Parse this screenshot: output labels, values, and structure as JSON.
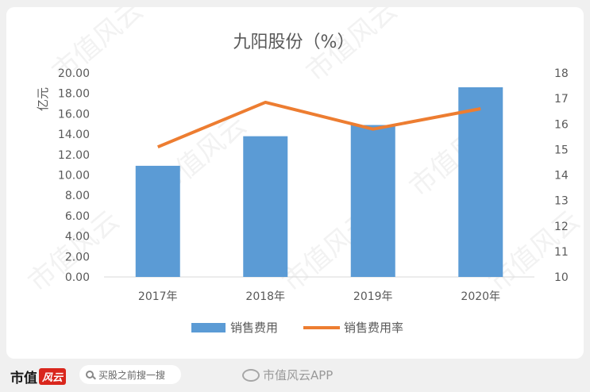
{
  "chart_data": {
    "type": "bar",
    "title": "九阳股份（%）",
    "categories": [
      "2017年",
      "2018年",
      "2019年",
      "2020年"
    ],
    "series": [
      {
        "name": "销售费用",
        "type": "bar",
        "axis": "left",
        "color": "#5b9bd5",
        "values": [
          10.9,
          13.8,
          14.9,
          18.6
        ]
      },
      {
        "name": "销售费用率",
        "type": "line",
        "axis": "right",
        "color": "#ed7d31",
        "values": [
          15.1,
          16.85,
          15.8,
          16.6
        ]
      }
    ],
    "ylabel": "亿元",
    "ylim": [
      0,
      20
    ],
    "yticks": [
      "20.00",
      "18.00",
      "16.00",
      "14.00",
      "12.00",
      "10.00",
      "8.00",
      "6.00",
      "4.00",
      "2.00",
      "0.00"
    ],
    "y2lim": [
      10,
      18
    ],
    "y2ticks": [
      "18",
      "17",
      "16",
      "15",
      "14",
      "13",
      "12",
      "11",
      "10"
    ],
    "grid": false,
    "legend_position": "bottom"
  },
  "watermark": "市值风云",
  "footer": {
    "brand_text": "市值",
    "brand_mark": "风云",
    "search_placeholder": "买股之前搜一搜",
    "weibo_text": "市值风云APP"
  }
}
